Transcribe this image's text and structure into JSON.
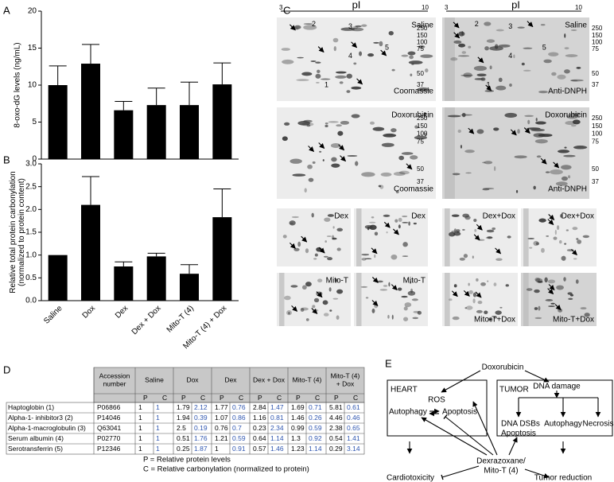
{
  "chart_data": [
    {
      "type": "bar",
      "panel": "A",
      "y_label": [
        "8-oxo-dG levels (ng/mL)"
      ],
      "categories": [
        null,
        null,
        null,
        null,
        null,
        null
      ],
      "values": [
        10,
        12.9,
        6.6,
        7.3,
        7.3,
        10.1
      ],
      "errors": [
        2.6,
        2.6,
        1.2,
        2.3,
        3.1,
        2.9
      ],
      "color": "#000000",
      "ylim": [
        0,
        20
      ],
      "yticks": [
        0,
        5,
        10,
        15,
        20
      ]
    },
    {
      "type": "bar",
      "panel": "B",
      "y_label": [
        "Relative total protein carbonylation",
        "(normalized to protein content)"
      ],
      "categories": [
        "Saline",
        "Dox",
        "Dex",
        "Dex + Dox",
        "Mito-T (4)",
        "Mito-T (4) + Dox"
      ],
      "values": [
        1.0,
        2.1,
        0.75,
        0.97,
        0.59,
        1.83
      ],
      "errors": [
        0,
        0.62,
        0.1,
        0.07,
        0.2,
        0.62
      ],
      "color": "#000000",
      "ylim": [
        0,
        3
      ],
      "yticks": [
        {
          "value": 0,
          "label": "0.0"
        },
        {
          "value": 0.5,
          "label": "0.5"
        },
        {
          "value": 1,
          "label": "1.0"
        },
        {
          "value": 1.5,
          "label": "1.5"
        },
        {
          "value": 2,
          "label": "2.0"
        },
        {
          "value": 2.5,
          "label": "2.5"
        },
        {
          "value": 3,
          "label": "3.0"
        }
      ]
    }
  ],
  "gel_panel": {
    "panel": "C",
    "pI_axis": {
      "label": "pI",
      "start": "3",
      "end": "10"
    },
    "mw_markers": [
      "250",
      "150",
      "100",
      "75",
      "50",
      "37"
    ],
    "spot_labels": [
      "1",
      "2",
      "3",
      "4",
      "5"
    ],
    "gels": [
      {
        "label": "Saline",
        "stain": "Coomassie"
      },
      {
        "label": "Saline",
        "stain": "Anti-DNPH"
      },
      {
        "label": "Doxorubicin",
        "stain": "Coomassie"
      },
      {
        "label": "Doxorubicin",
        "stain": "Anti-DNPH"
      },
      {
        "label": "Dex"
      },
      {
        "label": "Dex"
      },
      {
        "label": "Dex+Dox"
      },
      {
        "label": "Dex+Dox"
      },
      {
        "label": "Mito-T"
      },
      {
        "label": "Mito-T"
      },
      {
        "label": "Mito-T+Dox"
      },
      {
        "label": "Mito-T+Dox"
      }
    ]
  },
  "table": {
    "panel": "D",
    "header": [
      "Accession number",
      "Saline",
      "Dox",
      "Dex",
      "Dex + Dox",
      "Mito-T (4)",
      "Mito-T (4) + Dox"
    ],
    "subheader": [
      "P",
      "C"
    ],
    "rows": [
      {
        "name": "Haptoglobin (1)",
        "accession": "P06866",
        "values": [
          "1",
          "1",
          "1.79",
          "2.12",
          "1.77",
          "0.76",
          "2.84",
          "1.47",
          "1.69",
          "0.71",
          "5.81",
          "0.61"
        ]
      },
      {
        "name": "Alpha-1- inhibitor3 (2)",
        "accession": "P14046",
        "values": [
          "1",
          "1",
          "1.94",
          "0.39",
          "1.07",
          "0.86",
          "1.16",
          "0.81",
          "1.46",
          "0.26",
          "4.46",
          "0.46"
        ]
      },
      {
        "name": "Alpha-1-macroglobulin (3)",
        "accession": "Q63041",
        "values": [
          "1",
          "1",
          "2.5",
          "0.19",
          "0.76",
          "0.7",
          "0.23",
          "2.34",
          "0.99",
          "0.59",
          "2.38",
          "0.65"
        ]
      },
      {
        "name": "Serum albumin (4)",
        "accession": "P02770",
        "values": [
          "1",
          "1",
          "0.51",
          "1.76",
          "1.21",
          "0.59",
          "0.64",
          "1.14",
          "1.3",
          "0.92",
          "0.54",
          "1.41"
        ]
      },
      {
        "name": "Serotransferrin (5)",
        "accession": "P12346",
        "values": [
          "1",
          "1",
          "0.25",
          "1.87",
          "1",
          "0.91",
          "0.57",
          "1.46",
          "1.23",
          "1.14",
          "0.29",
          "3.14"
        ]
      }
    ],
    "notes": [
      "P = Relative protein levels",
      "C = Relative carbonylation (normalized to protein)"
    ]
  },
  "diagram": {
    "panel": "E",
    "top": "Doxorubicin",
    "heart": "HEART",
    "ros": "ROS",
    "heart_autophagy": "Autophagy",
    "heart_apoptosis": "Apoptosis",
    "tumor": "TUMOR",
    "dna_damage": "DNA damage",
    "dsbs": "DNA DSBs",
    "tumor_apoptosis": "Apoptosis",
    "tumor_autophagy": "Autophagy",
    "necrosis": "Necrosis",
    "drug": [
      "Dexrazoxane/",
      "Mito-T (4)"
    ],
    "cardiotoxicity": "Cardiotoxicity",
    "tumor_reduction": "Tumor reduction"
  }
}
